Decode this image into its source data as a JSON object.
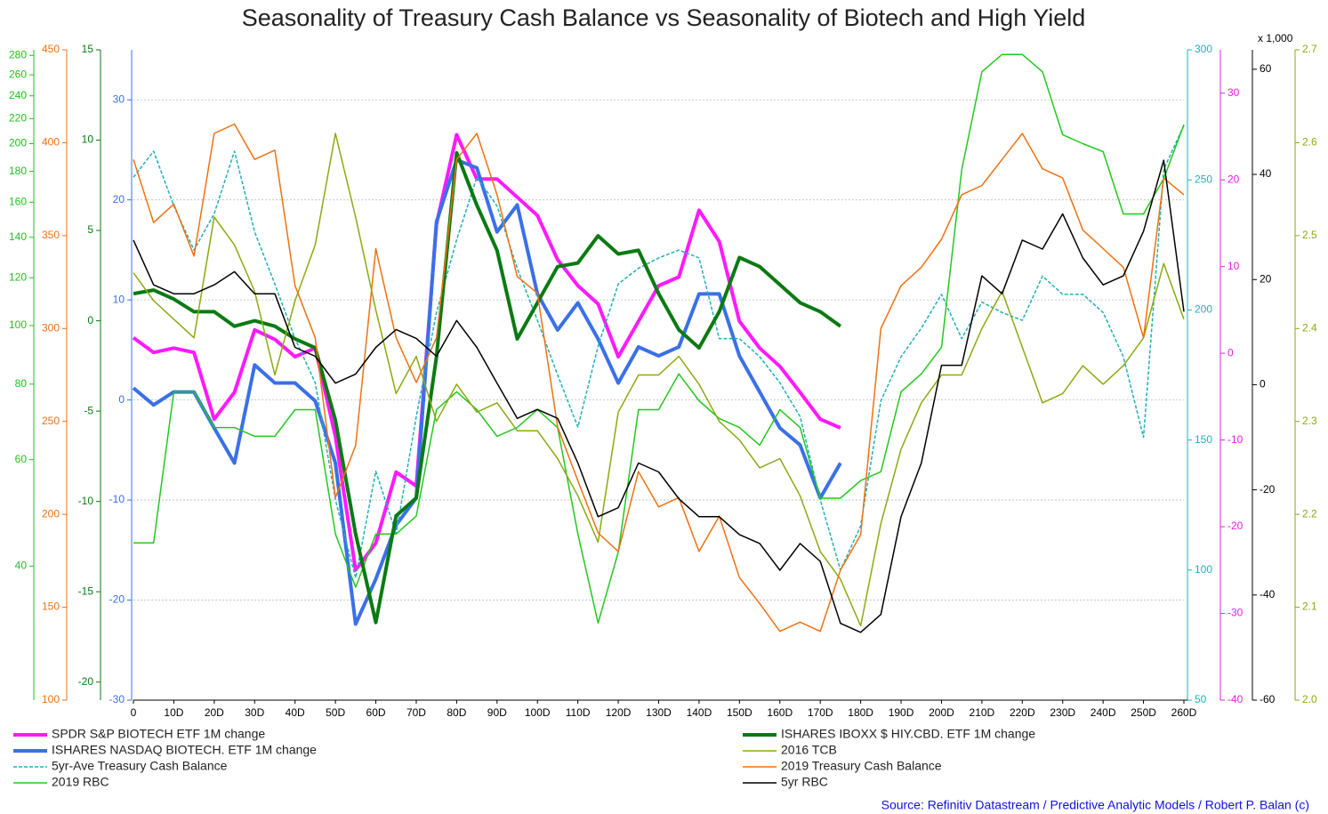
{
  "chart_data": {
    "type": "line",
    "title": "Seasonality of Treasury Cash Balance vs Seasonality of Biotech and High Yield",
    "source": "Source: Refinitiv Datastream / Predictive Analytic Models / Robert P. Balan (c)",
    "x": [
      0,
      5,
      10,
      15,
      20,
      25,
      30,
      35,
      40,
      45,
      50,
      55,
      60,
      65,
      70,
      75,
      80,
      85,
      90,
      95,
      100,
      105,
      110,
      115,
      120,
      125,
      130,
      135,
      140,
      145,
      150,
      155,
      160,
      165,
      170,
      175,
      180,
      185,
      190,
      195,
      200,
      205,
      210,
      215,
      220,
      225,
      230,
      235,
      240,
      245,
      250,
      255,
      260
    ],
    "xlim": [
      0,
      260
    ],
    "xticks": [
      0,
      {
        "value": 10,
        "label": "10D"
      },
      {
        "value": 20,
        "label": "20D"
      },
      {
        "value": 30,
        "label": "30D"
      },
      {
        "value": 40,
        "label": "40D"
      },
      {
        "value": 50,
        "label": "50D"
      },
      {
        "value": 60,
        "label": "60D"
      },
      {
        "value": 70,
        "label": "70D"
      },
      {
        "value": 80,
        "label": "80D"
      },
      {
        "value": 90,
        "label": "90D"
      },
      {
        "value": 100,
        "label": "100D"
      },
      {
        "value": 110,
        "label": "110D"
      },
      {
        "value": 120,
        "label": "120D"
      },
      {
        "value": 130,
        "label": "130D"
      },
      {
        "value": 140,
        "label": "140D"
      },
      {
        "value": 150,
        "label": "150D"
      },
      {
        "value": 160,
        "label": "160D"
      },
      {
        "value": 170,
        "label": "170D"
      },
      {
        "value": 180,
        "label": "180D"
      },
      {
        "value": 190,
        "label": "190D"
      },
      {
        "value": 200,
        "label": "200D"
      },
      {
        "value": 210,
        "label": "210D"
      },
      {
        "value": 220,
        "label": "220D"
      },
      {
        "value": 230,
        "label": "230D"
      },
      {
        "value": 240,
        "label": "240D"
      },
      {
        "value": 250,
        "label": "250D"
      },
      {
        "value": 260,
        "label": "260D"
      }
    ],
    "axes": [
      {
        "color": "#22c01e",
        "log": true,
        "ylim": [
          24,
          286
        ],
        "yticks": [
          40,
          60,
          80,
          100,
          120,
          140,
          160,
          180,
          200,
          220,
          240,
          260,
          280
        ]
      },
      {
        "color": "#f07010",
        "ylim": [
          100,
          450
        ],
        "yticks": [
          100,
          150,
          200,
          250,
          300,
          350,
          400,
          450
        ]
      },
      {
        "color": "#0a7a12",
        "ylim": [
          -21,
          15
        ],
        "yticks": [
          -20,
          -15,
          -10,
          -5,
          0,
          5,
          10,
          15
        ]
      },
      {
        "color": "#3a70e0",
        "ylim": [
          -30,
          35
        ],
        "yticks": [
          -30,
          -20,
          -10,
          0,
          10,
          20,
          30
        ],
        "grid": true
      },
      {
        "color": "#20b0b8",
        "ylim": [
          50,
          300
        ],
        "yticks": [
          50,
          100,
          150,
          200,
          250,
          300
        ]
      },
      {
        "color": "#e020e0",
        "ylim": [
          -40,
          35
        ],
        "yticks": [
          -40,
          -30,
          -20,
          -10,
          0,
          10,
          20,
          30
        ]
      },
      {
        "color": "#000000",
        "ylim": [
          -60,
          63.7
        ],
        "yticks": [
          -60,
          -40,
          -20,
          0,
          20,
          40,
          60
        ],
        "unit": "x 1,000"
      },
      {
        "color": "#8aaa10",
        "ylim": [
          2.0,
          2.7
        ],
        "yticks": [
          {
            "value": 2.0,
            "label": "2.0"
          },
          2.1,
          2.2,
          2.3,
          2.4,
          2.5,
          2.6,
          2.7
        ]
      }
    ],
    "series": [
      {
        "name": "SPDR S&P BIOTECH ETF 1M change",
        "color": "#ff1aff",
        "width": 4,
        "axis": 5,
        "values": [
          1.8,
          0.1,
          0.6,
          0.1,
          -7.6,
          -4.5,
          2.7,
          1.6,
          -0.4,
          0.6,
          -9.6,
          -25,
          -21.9,
          -13.7,
          -15.3,
          14.9,
          25.2,
          20.1,
          20.1,
          18,
          15.9,
          10.8,
          7.8,
          5.7,
          -0.4,
          3.7,
          7.8,
          8.8,
          16.5,
          12.9,
          3.7,
          0.6,
          -1.5,
          -4.5,
          -7.6,
          -8.6,
          null,
          null,
          null,
          null,
          null,
          null,
          null,
          null,
          null,
          null,
          null,
          null,
          null,
          null,
          null,
          null,
          null
        ]
      },
      {
        "name": "ISHARES NASDAQ BIOTECH. ETF 1M change",
        "color": "#3a70e8",
        "width": 4,
        "axis": 3,
        "values": [
          1.2,
          -0.5,
          0.8,
          0.8,
          -2.8,
          -6.3,
          3.5,
          1.7,
          1.7,
          -0.1,
          -6.3,
          -22.4,
          -17.9,
          -12.5,
          -9.8,
          17.8,
          24,
          23.2,
          16.8,
          19.5,
          10.6,
          7,
          9.7,
          6.1,
          1.7,
          5.3,
          4.4,
          5.3,
          10.6,
          10.6,
          4.4,
          0.8,
          -2.8,
          -4.5,
          -9.8,
          -6.3,
          null,
          null,
          null,
          null,
          null,
          null,
          null,
          null,
          null,
          null,
          null,
          null,
          null,
          null,
          null,
          null,
          null
        ]
      },
      {
        "name": "5yr-Ave Treasury Cash Balance",
        "color": "#20b0b8",
        "width": 1.5,
        "dashed": true,
        "axis": 4,
        "values": [
          251,
          261,
          240,
          223,
          237,
          261,
          230,
          210,
          189,
          172,
          127,
          97,
          138,
          114,
          159,
          199,
          227,
          251,
          240,
          216,
          196,
          175,
          155,
          186,
          210,
          216,
          220,
          223,
          220,
          189,
          189,
          182,
          172,
          159,
          127,
          100,
          117,
          165,
          182,
          193,
          206,
          189,
          203,
          199,
          196,
          213,
          206,
          206,
          199,
          182,
          151,
          254,
          271
        ]
      },
      {
        "name": "2019 RBC",
        "color": "#22c81e",
        "width": 1.5,
        "axis": 0,
        "values": [
          43.7,
          43.7,
          77.7,
          77.7,
          67.8,
          67.8,
          65.6,
          65.6,
          72.6,
          72.6,
          45.2,
          36.9,
          45.2,
          45.2,
          48.4,
          72.6,
          77.7,
          72.6,
          65.6,
          67.8,
          72.6,
          67.8,
          45.2,
          32.2,
          42.2,
          72.6,
          72.6,
          83.2,
          75.1,
          70.2,
          67.8,
          63.4,
          72.6,
          67.8,
          51.8,
          51.8,
          55.4,
          57.3,
          77.7,
          83.2,
          92.1,
          181,
          263,
          281,
          281,
          263,
          207,
          200,
          194,
          153,
          153,
          175,
          215
        ]
      },
      {
        "name": "ISHARES IBOXX $ HIY.CBD. ETF 1M change",
        "color": "#0a7a12",
        "width": 4,
        "axis": 2,
        "values": [
          1.5,
          1.7,
          1.2,
          0.5,
          0.5,
          -0.3,
          0,
          -0.3,
          -1,
          -1.5,
          -5.5,
          -11.8,
          -16.7,
          -10.8,
          -9.8,
          -2,
          9.3,
          6.4,
          3.9,
          -1,
          1,
          3,
          3.2,
          4.7,
          3.7,
          3.9,
          1.5,
          -0.5,
          -1.5,
          0.5,
          3.5,
          3,
          2,
          1,
          0.5,
          -0.3,
          null,
          null,
          null,
          null,
          null,
          null,
          null,
          null,
          null,
          null,
          null,
          null,
          null,
          null,
          null,
          null,
          null
        ]
      },
      {
        "name": "2016 TCB",
        "color": "#8aaa10",
        "width": 1.5,
        "axis": 7,
        "values": [
          2.46,
          2.43,
          2.41,
          2.39,
          2.52,
          2.49,
          2.44,
          2.35,
          2.43,
          2.49,
          2.61,
          2.52,
          2.42,
          2.33,
          2.37,
          2.3,
          2.34,
          2.31,
          2.32,
          2.29,
          2.29,
          2.26,
          2.22,
          2.17,
          2.31,
          2.35,
          2.35,
          2.37,
          2.34,
          2.3,
          2.28,
          2.25,
          2.26,
          2.22,
          2.16,
          2.13,
          2.08,
          2.19,
          2.27,
          2.32,
          2.35,
          2.35,
          2.4,
          2.44,
          2.38,
          2.32,
          2.33,
          2.36,
          2.34,
          2.36,
          2.39,
          2.47,
          2.41
        ]
      },
      {
        "name": "2019 Treasury Cash Balance",
        "color": "#f07010",
        "width": 1.5,
        "axis": 1,
        "values": [
          391,
          357,
          367,
          339,
          405,
          410,
          391,
          396,
          323,
          295,
          209,
          237,
          343,
          295,
          271,
          295,
          391,
          405,
          372,
          328,
          319,
          247,
          218,
          190,
          180,
          223,
          204,
          209,
          180,
          199,
          166,
          152,
          137,
          142,
          137,
          170,
          189,
          300,
          323,
          333,
          348,
          372,
          377,
          391,
          405,
          386,
          381,
          353,
          343,
          333,
          295,
          381,
          372
        ]
      },
      {
        "name": "5yr RBC",
        "color": "#000000",
        "width": 1.5,
        "axis": 6,
        "values": [
          27.5,
          19,
          17.3,
          17.3,
          19,
          21.5,
          17.3,
          17.3,
          7.1,
          5.4,
          0.3,
          2,
          7.1,
          10.5,
          8.8,
          5.4,
          12.2,
          7.1,
          0.3,
          -6.4,
          -4.7,
          -6.4,
          -14.9,
          -25.1,
          -23.4,
          -14.9,
          -16.6,
          -21.7,
          -25.1,
          -25.1,
          -28.5,
          -30.2,
          -35.3,
          -30.2,
          -33.6,
          -45.4,
          -47.1,
          -43.7,
          -25.1,
          -14.9,
          3.7,
          3.7,
          20.7,
          17.3,
          27.5,
          25.8,
          32.5,
          24.1,
          19,
          20.7,
          29.2,
          42.7,
          13.9
        ]
      }
    ]
  }
}
